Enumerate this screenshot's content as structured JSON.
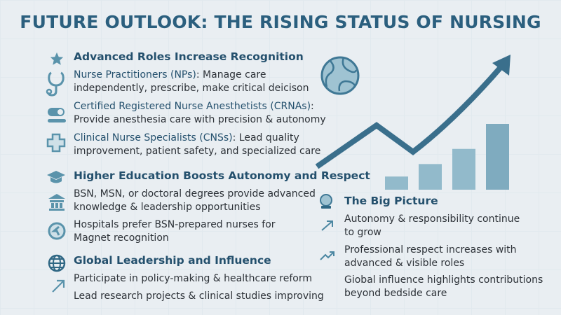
{
  "title": "FUTURE OUTLOOK: THE RISING STATUS OF NURSING",
  "colors": {
    "accent": "#2b5f7e",
    "icon": "#5a93ab",
    "bar": "#8bb4c5",
    "background": "#e9eef2"
  },
  "sections": [
    {
      "heading": "Advanced Roles Increase Recognition",
      "icon": "star-icon",
      "items": [
        {
          "icon": "stethoscope-icon",
          "label": "Nurse Practitioners (NPs)",
          "text": ": Manage care",
          "text2": "independently, prescribe, make critical deicison"
        },
        {
          "icon": "capsule-icon",
          "label": "Certified Registered Nurse Anesthetists (CRNAs)",
          "text": ":",
          "text2": "Provide anesthesia care with precision & autonomy"
        },
        {
          "icon": "medical-cross-icon",
          "label": "Clinical Nurse Specialists (CNSs)",
          "text": ": Lead quality",
          "text2": "improvement, patient safety, and specialized care"
        }
      ]
    },
    {
      "heading": "Higher Education Boosts Autonomy and Respect",
      "icon": "graduation-cap-icon",
      "items": [
        {
          "icon": "institution-icon",
          "line1": "BSN, MSN, or doctoral degrees provide advanced",
          "line2": "knowledge & leadership opportunities"
        },
        {
          "icon": "magnet-badge-icon",
          "line1": "Hospitals prefer BSN-prepared nurses for",
          "line2": "Magnet recognition"
        }
      ]
    },
    {
      "heading": "Global Leadership and Influence",
      "icon": "globe-icon",
      "items": [
        {
          "icon": "arrow-up-right-icon",
          "line1": "Participate in policy-making & healthcare reform"
        },
        {
          "icon": "",
          "line1": "Lead research projects & clinical studies improving"
        }
      ]
    }
  ],
  "big_picture": {
    "heading": "The Big Picture",
    "icon": "crystal-ball-icon",
    "items": [
      {
        "icon": "arrow-up-right-icon",
        "line1": "Autonomy & responsibility continue",
        "line2": "to grow"
      },
      {
        "icon": "trend-up-icon",
        "line1": "Professional respect increases with",
        "line2": "advanced & visible roles"
      },
      {
        "icon": "",
        "line1": "Giobal influence highlights contributions",
        "line2": "beyond bedside care"
      }
    ]
  },
  "illustration": {
    "bars_relative": [
      0.2,
      0.39,
      0.62,
      1.0
    ],
    "icons": [
      "world-map-icon",
      "rising-arrow-icon"
    ]
  }
}
